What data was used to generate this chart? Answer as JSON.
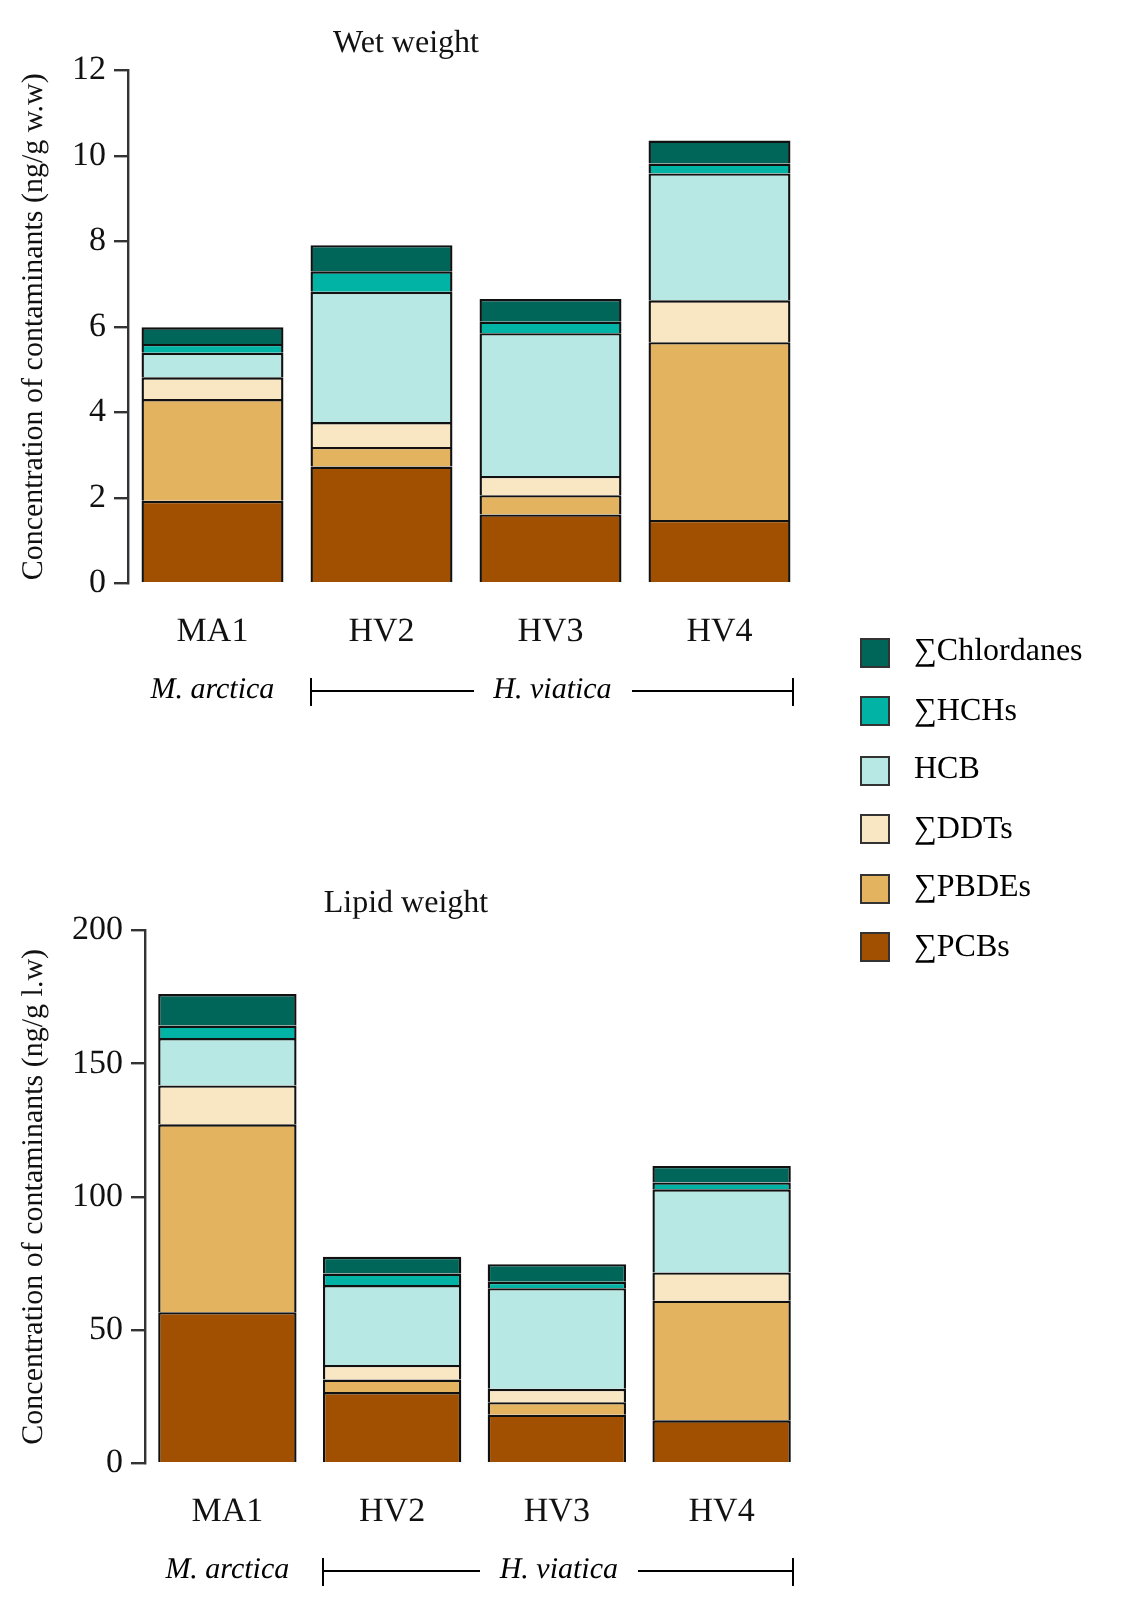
{
  "chart_data": [
    {
      "type": "bar",
      "title": "Wet weight",
      "ylabel": "Concentration of contaminants (ng/g w.w)",
      "categories": [
        "MA1",
        "HV2",
        "HV3",
        "HV4"
      ],
      "stacked": true,
      "ylim": [
        0,
        12
      ],
      "yticks": [
        0,
        2,
        4,
        6,
        8,
        10,
        12
      ],
      "grid": false,
      "legend": "bottom right",
      "annotations": [
        "M. arctica",
        "H. viatica"
      ],
      "series": [
        {
          "name": "∑PCBs",
          "color": "#a05000",
          "values": [
            1.93,
            2.73,
            1.61,
            1.48
          ]
        },
        {
          "name": "∑PBDEs",
          "color": "#e3b35f",
          "values": [
            2.38,
            0.46,
            0.45,
            4.16
          ]
        },
        {
          "name": "∑DDTs",
          "color": "#f9e6c3",
          "values": [
            0.51,
            0.58,
            0.45,
            0.98
          ]
        },
        {
          "name": "HCB",
          "color": "#b8e8e3",
          "values": [
            0.57,
            3.05,
            3.34,
            2.97
          ]
        },
        {
          "name": "∑HCHs",
          "color": "#00b3a4",
          "values": [
            0.21,
            0.48,
            0.27,
            0.23
          ]
        },
        {
          "name": "∑Chlordanes",
          "color": "#00665a",
          "values": [
            0.39,
            0.61,
            0.53,
            0.54
          ]
        }
      ]
    },
    {
      "type": "bar",
      "title": "Lipid weight",
      "ylabel": "Concentration of contaminants (ng/g l.w)",
      "categories": [
        "MA1",
        "HV2",
        "HV3",
        "HV4"
      ],
      "stacked": true,
      "ylim": [
        0,
        200
      ],
      "yticks": [
        0,
        50,
        100,
        150,
        200
      ],
      "grid": false,
      "annotations": [
        "M. arctica",
        "H. viatica"
      ],
      "series": [
        {
          "color": "#a05000",
          "values": [
            56.7,
            26.7,
            18.2,
            16.1
          ]
        },
        {
          "color": "#e3b35f",
          "values": [
            70.5,
            4.7,
            4.7,
            44.9
          ]
        },
        {
          "color": "#f9e6c3",
          "values": [
            14.6,
            5.5,
            5.0,
            10.6
          ]
        },
        {
          "color": "#b8e8e3",
          "values": [
            17.8,
            30.0,
            37.8,
            31.2
          ]
        },
        {
          "color": "#00b3a4",
          "values": [
            4.7,
            4.3,
            2.4,
            2.6
          ]
        },
        {
          "color": "#00665a",
          "values": [
            11.8,
            6.3,
            6.6,
            6.2
          ]
        }
      ]
    }
  ]
}
